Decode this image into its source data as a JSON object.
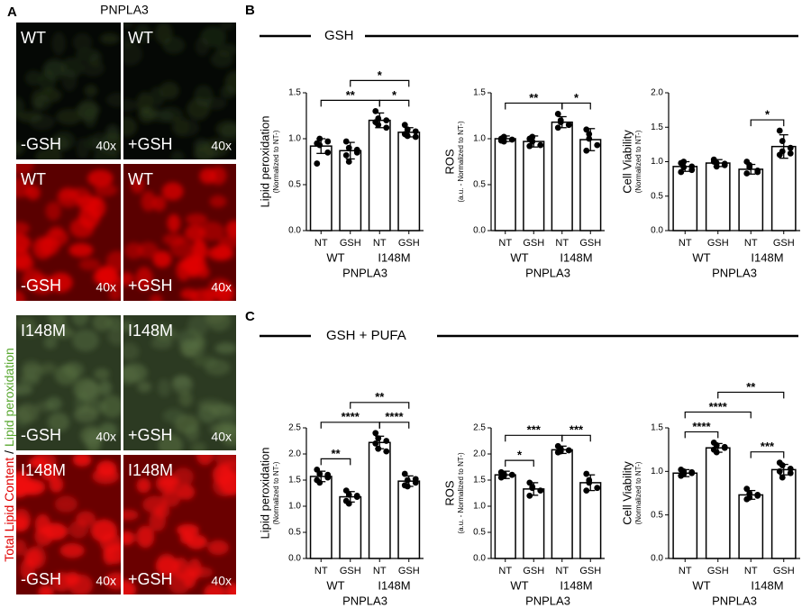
{
  "panel_a": {
    "letter": "A",
    "title": "PNPLA3",
    "side_label": {
      "red": "Total Lipid Content",
      "sep": "/",
      "green": "Lipid peroxidation"
    },
    "tiles": [
      {
        "genotype": "WT",
        "treatment": "-GSH",
        "magnification": "40x"
      },
      {
        "genotype": "WT",
        "treatment": "+GSH",
        "magnification": "40x"
      },
      {
        "genotype": "WT",
        "treatment": "-GSH",
        "magnification": "40x"
      },
      {
        "genotype": "WT",
        "treatment": "+GSH",
        "magnification": "40x"
      },
      {
        "genotype": "I148M",
        "treatment": "-GSH",
        "magnification": "40x"
      },
      {
        "genotype": "I148M",
        "treatment": "+GSH",
        "magnification": "40x"
      },
      {
        "genotype": "I148M",
        "treatment": "-GSH",
        "magnification": "40x"
      },
      {
        "genotype": "I148M",
        "treatment": "+GSH",
        "magnification": "40x"
      }
    ]
  },
  "panel_b": {
    "letter": "B",
    "heading": "GSH"
  },
  "panel_c": {
    "letter": "C",
    "heading": "GSH + PUFA"
  },
  "chart_data": [
    {
      "type": "bar",
      "ylabel": "Lipid peroxidation",
      "ylabel_note": "(Normalized to NT-)",
      "categories": [
        "NT",
        "GSH",
        "NT",
        "GSH"
      ],
      "groups": [
        "WT",
        "I148M"
      ],
      "xlabel": "PNPLA3",
      "values": [
        0.92,
        0.87,
        1.2,
        1.07
      ],
      "errors": [
        0.08,
        0.09,
        0.08,
        0.05
      ],
      "points": [
        [
          0.95,
          1.0,
          0.85,
          0.73,
          0.93,
          0.97
        ],
        [
          0.97,
          0.9,
          0.85,
          0.82,
          0.75,
          0.88
        ],
        [
          1.3,
          1.22,
          1.2,
          1.18,
          1.15,
          1.12
        ],
        [
          1.15,
          1.1,
          1.08,
          1.05,
          1.03,
          1.02
        ]
      ],
      "ylim": [
        0,
        1.5
      ],
      "yticks": [
        {
          "value": 0,
          "label": "0.0"
        },
        0.5,
        {
          "value": 1,
          "label": "1.0"
        },
        1.5
      ],
      "annotations": [
        {
          "from": 0,
          "to": 2,
          "label": "**"
        },
        {
          "from": 2,
          "to": 3,
          "label": "*"
        },
        {
          "from": 1,
          "to": 3,
          "label": "*"
        }
      ],
      "color": "#ffffff"
    },
    {
      "type": "bar",
      "ylabel": "ROS",
      "ylabel_note": "(a.u. - Normalized to NT-)",
      "categories": [
        "NT",
        "GSH",
        "NT",
        "GSH"
      ],
      "groups": [
        "WT",
        "I148M"
      ],
      "xlabel": "PNPLA3",
      "values": [
        1.0,
        0.97,
        1.18,
        0.99
      ],
      "errors": [
        0.03,
        0.06,
        0.06,
        0.12
      ],
      "points": [
        [
          1.0,
          1.02,
          0.99,
          0.98,
          0.97
        ],
        [
          1.0,
          0.97,
          0.93,
          0.92,
          1.02
        ],
        [
          1.27,
          1.2,
          1.15,
          1.12,
          1.18
        ],
        [
          1.1,
          1.05,
          0.93,
          0.87,
          1.0
        ]
      ],
      "ylim": [
        0,
        1.5
      ],
      "yticks": [
        {
          "value": 0,
          "label": "0.0"
        },
        0.5,
        {
          "value": 1,
          "label": "1.0"
        },
        1.5
      ],
      "annotations": [
        {
          "from": 0,
          "to": 2,
          "label": "**"
        },
        {
          "from": 2,
          "to": 3,
          "label": "*"
        }
      ],
      "color": "#ffffff"
    },
    {
      "type": "bar",
      "ylabel": "Cell Viability",
      "ylabel_note": "(Normalized to NT-)",
      "categories": [
        "NT",
        "GSH",
        "NT",
        "GSH"
      ],
      "groups": [
        "WT",
        "I148M"
      ],
      "xlabel": "PNPLA3",
      "values": [
        0.93,
        0.98,
        0.89,
        1.22
      ],
      "errors": [
        0.07,
        0.05,
        0.07,
        0.17
      ],
      "points": [
        [
          0.98,
          1.0,
          0.93,
          0.85,
          0.92,
          0.88
        ],
        [
          1.03,
          0.98,
          0.95,
          1.0,
          0.93,
          0.97
        ],
        [
          1.0,
          0.95,
          0.85,
          0.83,
          0.92,
          0.87
        ],
        [
          1.45,
          1.3,
          1.2,
          1.1,
          1.15,
          1.12
        ]
      ],
      "ylim": [
        0,
        2
      ],
      "yticks": [
        {
          "value": 0,
          "label": "0.0"
        },
        0.5,
        {
          "value": 1,
          "label": "1.0"
        },
        1.5,
        {
          "value": 2,
          "label": "2.0"
        }
      ],
      "annotations": [
        {
          "from": 2,
          "to": 3,
          "label": "*"
        }
      ],
      "color": "#ffffff"
    },
    {
      "type": "bar",
      "ylabel": "Lipid peroxidation",
      "ylabel_note": "(Normalized to NT-)",
      "categories": [
        "NT",
        "GSH",
        "NT",
        "GSH"
      ],
      "groups": [
        "WT",
        "I148M"
      ],
      "xlabel": "PNPLA3",
      "values": [
        1.57,
        1.18,
        2.22,
        1.48
      ],
      "errors": [
        0.1,
        0.1,
        0.12,
        0.1
      ],
      "points": [
        [
          1.7,
          1.62,
          1.55,
          1.5,
          1.45,
          1.6
        ],
        [
          1.3,
          1.22,
          1.18,
          1.1,
          1.05,
          1.2
        ],
        [
          2.4,
          2.3,
          2.25,
          2.2,
          2.1,
          2.05
        ],
        [
          1.62,
          1.5,
          1.45,
          1.4,
          1.38,
          1.52
        ]
      ],
      "ylim": [
        0,
        2.5
      ],
      "yticks": [
        {
          "value": 0,
          "label": "0.0"
        },
        0.5,
        {
          "value": 1,
          "label": "1.0"
        },
        1.5,
        {
          "value": 2,
          "label": "2.0"
        },
        2.5
      ],
      "annotations": [
        {
          "from": 0,
          "to": 1,
          "label": "**"
        },
        {
          "from": 2,
          "to": 3,
          "label": "****"
        },
        {
          "from": 0,
          "to": 2,
          "label": "****"
        },
        {
          "from": 1,
          "to": 3,
          "label": "**"
        }
      ],
      "color": "#ffffff"
    },
    {
      "type": "bar",
      "ylabel": "ROS",
      "ylabel_note": "(a.u. - Normalized to NT-)",
      "categories": [
        "NT",
        "GSH",
        "NT",
        "GSH"
      ],
      "groups": [
        "WT",
        "I148M"
      ],
      "xlabel": "PNPLA3",
      "values": [
        1.6,
        1.33,
        2.08,
        1.45
      ],
      "errors": [
        0.07,
        0.12,
        0.07,
        0.15
      ],
      "points": [
        [
          1.65,
          1.58,
          1.6,
          1.55,
          1.62
        ],
        [
          1.45,
          1.35,
          1.3,
          1.2,
          1.37
        ],
        [
          2.15,
          2.1,
          2.07,
          2.03,
          2.05
        ],
        [
          1.62,
          1.5,
          1.35,
          1.3,
          1.45
        ]
      ],
      "ylim": [
        0,
        2.5
      ],
      "yticks": [
        {
          "value": 0,
          "label": "0.0"
        },
        0.5,
        {
          "value": 1,
          "label": "1.0"
        },
        1.5,
        {
          "value": 2,
          "label": "2.0"
        },
        2.5
      ],
      "annotations": [
        {
          "from": 0,
          "to": 1,
          "label": "*"
        },
        {
          "from": 2,
          "to": 3,
          "label": "***"
        },
        {
          "from": 0,
          "to": 2,
          "label": "***"
        }
      ],
      "color": "#ffffff"
    },
    {
      "type": "bar",
      "ylabel": "Cell Viability",
      "ylabel_note": "(Normalized to NT-)",
      "categories": [
        "NT",
        "GSH",
        "NT",
        "GSH"
      ],
      "groups": [
        "WT",
        "I148M"
      ],
      "xlabel": "PNPLA3",
      "values": [
        0.98,
        1.27,
        0.73,
        1.02
      ],
      "errors": [
        0.04,
        0.05,
        0.05,
        0.06
      ],
      "points": [
        [
          1.02,
          1.0,
          0.98,
          0.95,
          0.97,
          0.99
        ],
        [
          1.33,
          1.3,
          1.27,
          1.25,
          1.22,
          1.28
        ],
        [
          0.8,
          0.75,
          0.72,
          0.68,
          0.7,
          0.73
        ],
        [
          1.1,
          1.07,
          1.03,
          1.0,
          0.93,
          0.98
        ]
      ],
      "ylim": [
        0,
        1.5
      ],
      "yticks": [
        {
          "value": 0,
          "label": "0.0"
        },
        0.5,
        {
          "value": 1,
          "label": "1.0"
        },
        1.5
      ],
      "annotations": [
        {
          "from": 0,
          "to": 1,
          "label": "****"
        },
        {
          "from": 2,
          "to": 3,
          "label": "***"
        },
        {
          "from": 0,
          "to": 2,
          "label": "****"
        },
        {
          "from": 1,
          "to": 3,
          "label": "**"
        }
      ],
      "color": "#ffffff"
    }
  ]
}
